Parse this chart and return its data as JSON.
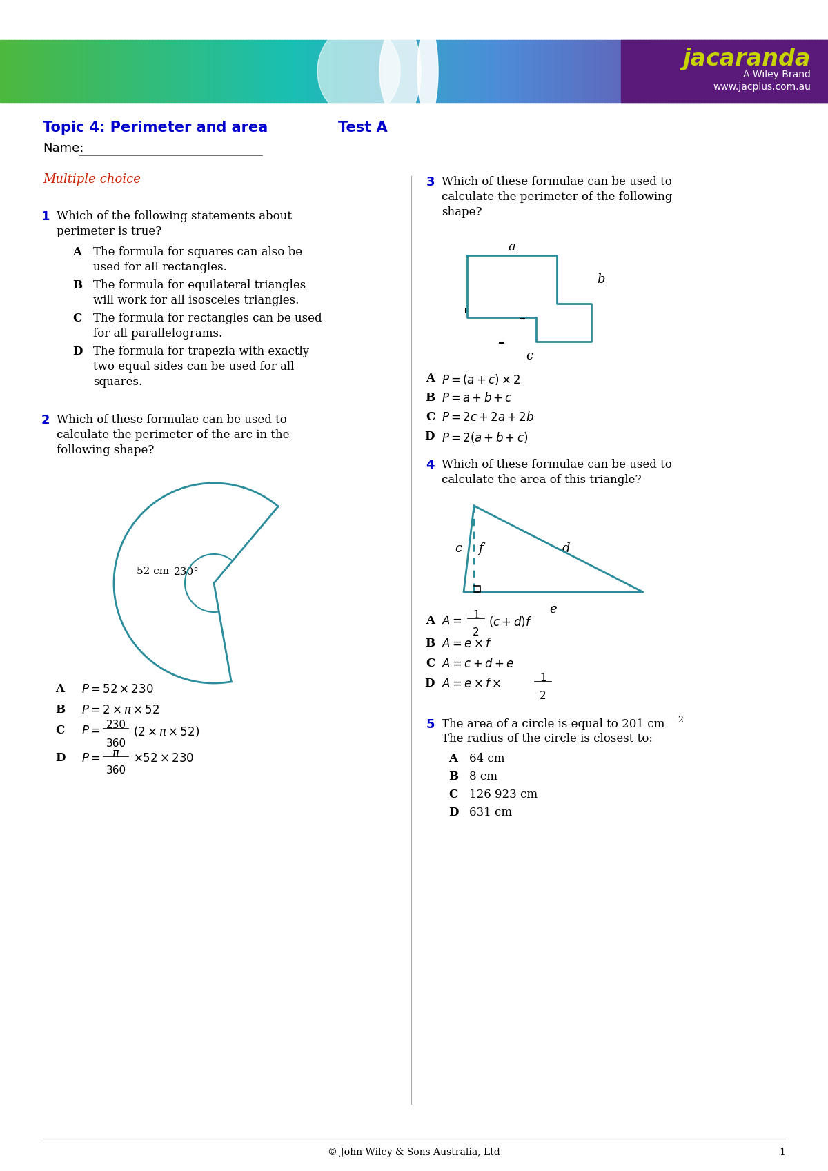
{
  "title1": "Topic 4: Perimeter and area",
  "title2": "Test A",
  "name_label": "Name:",
  "section_label": "Multiple-choice",
  "footer": "© John Wiley & Sons Australia, Ltd",
  "page_num": "1",
  "header_color": "#0000cc",
  "red_color": "#cc2200",
  "teal_color": "#2b8c9b",
  "jacaranda_yellow": "#c8d400",
  "jacaranda_text": "jacaranda",
  "wiley_text": "A Wiley Brand",
  "website_text": "www.jacplus.com.au"
}
